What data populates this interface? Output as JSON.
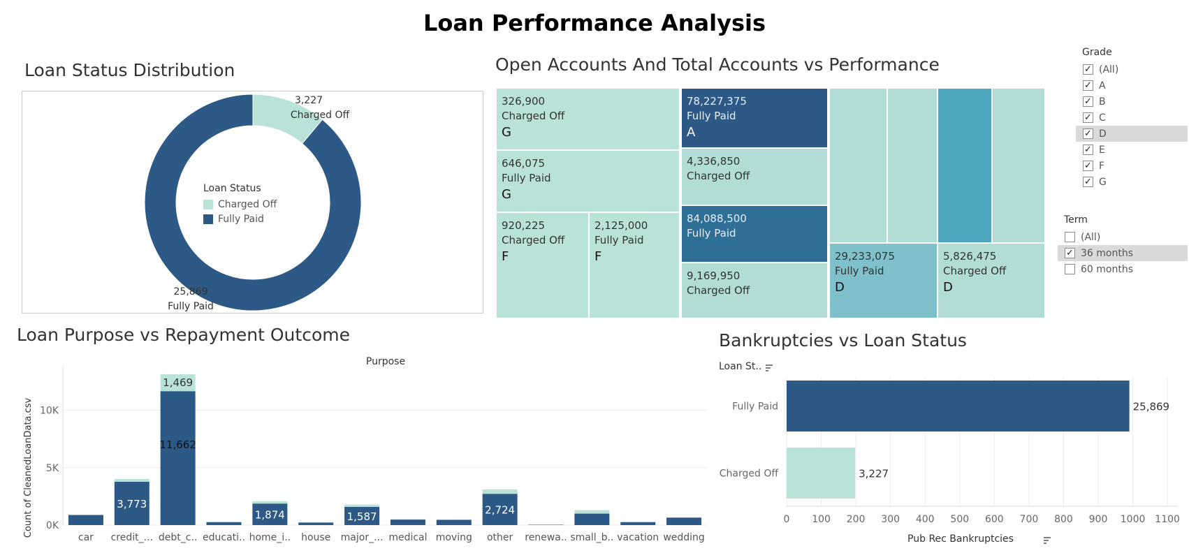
{
  "dashboard": {
    "title": "Loan Performance Analysis"
  },
  "colors": {
    "charged_off": "#b9e3d8",
    "fully_paid": "#2c5985",
    "mid_blue": "#2f6f96",
    "teal": "#7fc1cb",
    "teal_dark": "#4ea6bd",
    "light_teal": "#b2ddd6"
  },
  "donut": {
    "title": "Loan Status Distribution",
    "legend_title": "Loan Status",
    "legend_items": [
      "Charged Off",
      "Fully Paid"
    ],
    "label_charged_value": "3,227",
    "label_charged_name": "Charged Off",
    "label_paid_value": "25,869",
    "label_paid_name": "Fully Paid"
  },
  "treemap": {
    "title": "Open Accounts And Total Accounts vs Performance",
    "cells": [
      {
        "value": "326,900",
        "status": "Charged Off",
        "grade": "G"
      },
      {
        "value": "646,075",
        "status": "Fully Paid",
        "grade": "G"
      },
      {
        "value": "920,225",
        "status": "Charged Off",
        "grade": "F"
      },
      {
        "value": "2,125,000",
        "status": "Fully Paid",
        "grade": "F"
      },
      {
        "value": "78,227,375",
        "status": "Fully Paid",
        "grade": "A"
      },
      {
        "value": "4,336,850",
        "status": "Charged Off",
        "grade": ""
      },
      {
        "value": "84,088,500",
        "status": "Fully Paid",
        "grade": ""
      },
      {
        "value": "9,169,950",
        "status": "Charged Off",
        "grade": ""
      },
      {
        "value": "29,233,075",
        "status": "Fully Paid",
        "grade": "D"
      },
      {
        "value": "5,826,475",
        "status": "Charged Off",
        "grade": "D"
      }
    ]
  },
  "filters": {
    "grade": {
      "title": "Grade",
      "options": [
        {
          "label": "(All)",
          "checked": true
        },
        {
          "label": "A",
          "checked": true
        },
        {
          "label": "B",
          "checked": true
        },
        {
          "label": "C",
          "checked": true
        },
        {
          "label": "D",
          "checked": true
        },
        {
          "label": "E",
          "checked": true
        },
        {
          "label": "F",
          "checked": true
        },
        {
          "label": "G",
          "checked": true
        }
      ]
    },
    "term": {
      "title": "Term",
      "options": [
        {
          "label": "(All)",
          "checked": false
        },
        {
          "label": "36 months",
          "checked": true
        },
        {
          "label": "60 months",
          "checked": false
        }
      ]
    }
  },
  "purpose_chart": {
    "title": "Loan Purpose vs Repayment Outcome"
  },
  "bankruptcy_chart": {
    "title": "Bankruptcies vs Loan Status",
    "yheader": "Loan St..",
    "sort_icon": "sort-icon"
  },
  "chart_data": [
    {
      "type": "pie",
      "title": "Loan Status Distribution",
      "legend_title": "Loan Status",
      "categories": [
        "Charged Off",
        "Fully Paid"
      ],
      "values": [
        3227,
        25869
      ]
    },
    {
      "type": "bar",
      "stacked": true,
      "title": "Loan Purpose vs Repayment Outcome",
      "xlabel": "Purpose",
      "ylabel": "Count of CleanedLoanData.csv",
      "categories": [
        "car",
        "credit_...",
        "debt_c..",
        "educati..",
        "home_i..",
        "house",
        "major_...",
        "medical",
        "moving",
        "other",
        "renewa..",
        "small_b..",
        "vacation",
        "wedding"
      ],
      "series": [
        {
          "name": "Fully Paid",
          "values": [
            880,
            3773,
            11662,
            260,
            1874,
            220,
            1587,
            480,
            460,
            2724,
            30,
            1000,
            260,
            650
          ]
        },
        {
          "name": "Charged Off",
          "values": [
            0,
            240,
            1469,
            0,
            200,
            0,
            200,
            0,
            0,
            380,
            0,
            300,
            0,
            0
          ]
        }
      ],
      "data_labels": {
        "credit_...": "3,773",
        "debt_c..": "11,662",
        "debt_c.._top": "1,469",
        "home_i..": "1,874",
        "major_...": "1,587",
        "other": "2,724"
      },
      "yticks": [
        "0K",
        "5K",
        "10K"
      ],
      "ylim": [
        0,
        13500
      ]
    },
    {
      "type": "bar",
      "orientation": "horizontal",
      "title": "Bankruptcies vs Loan Status",
      "xlabel": "Pub Rec Bankruptcies",
      "ylabel": "Loan St..",
      "categories": [
        "Fully Paid",
        "Charged Off"
      ],
      "values": [
        990,
        198
      ],
      "data_labels": [
        "25,869",
        "3,227"
      ],
      "xticks": [
        "0",
        "100",
        "200",
        "300",
        "400",
        "500",
        "600",
        "700",
        "800",
        "900",
        "1000",
        "1100"
      ],
      "xlim": [
        0,
        1130
      ]
    }
  ]
}
